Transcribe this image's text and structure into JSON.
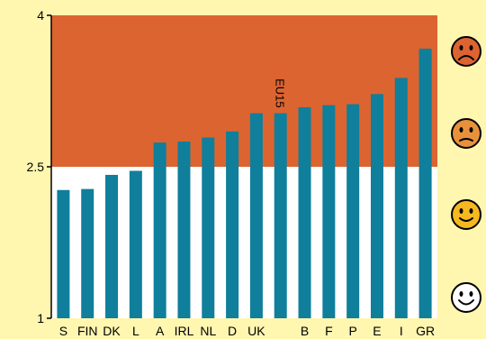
{
  "chart_data": {
    "type": "bar",
    "title": "",
    "xlabel": "",
    "ylabel": "",
    "ylim": [
      1,
      4
    ],
    "yticks": [
      "1",
      "2.5",
      "4"
    ],
    "categories": [
      "S",
      "FIN",
      "DK",
      "L",
      "A",
      "IRL",
      "NL",
      "D",
      "UK",
      "EU15",
      "B",
      "F",
      "P",
      "E",
      "I",
      "GR"
    ],
    "values": [
      2.27,
      2.28,
      2.42,
      2.46,
      2.74,
      2.75,
      2.79,
      2.85,
      3.03,
      3.03,
      3.09,
      3.11,
      3.12,
      3.22,
      3.38,
      3.67
    ],
    "annotation": {
      "category": "EU15",
      "text": "EU15"
    },
    "threshold": 2.5,
    "bar_color": "#0f7f9b",
    "band_above_color": "#dc6431",
    "band_below_color": "#ffffff",
    "grid": false,
    "legend": "none",
    "faces": [
      {
        "icon": "very-sad-face-icon",
        "color": "#dc6431"
      },
      {
        "icon": "sad-face-icon",
        "color": "#e8913c"
      },
      {
        "icon": "happy-face-icon",
        "color": "#f5b820"
      },
      {
        "icon": "very-happy-face-icon",
        "color": "#ffffff"
      }
    ]
  }
}
